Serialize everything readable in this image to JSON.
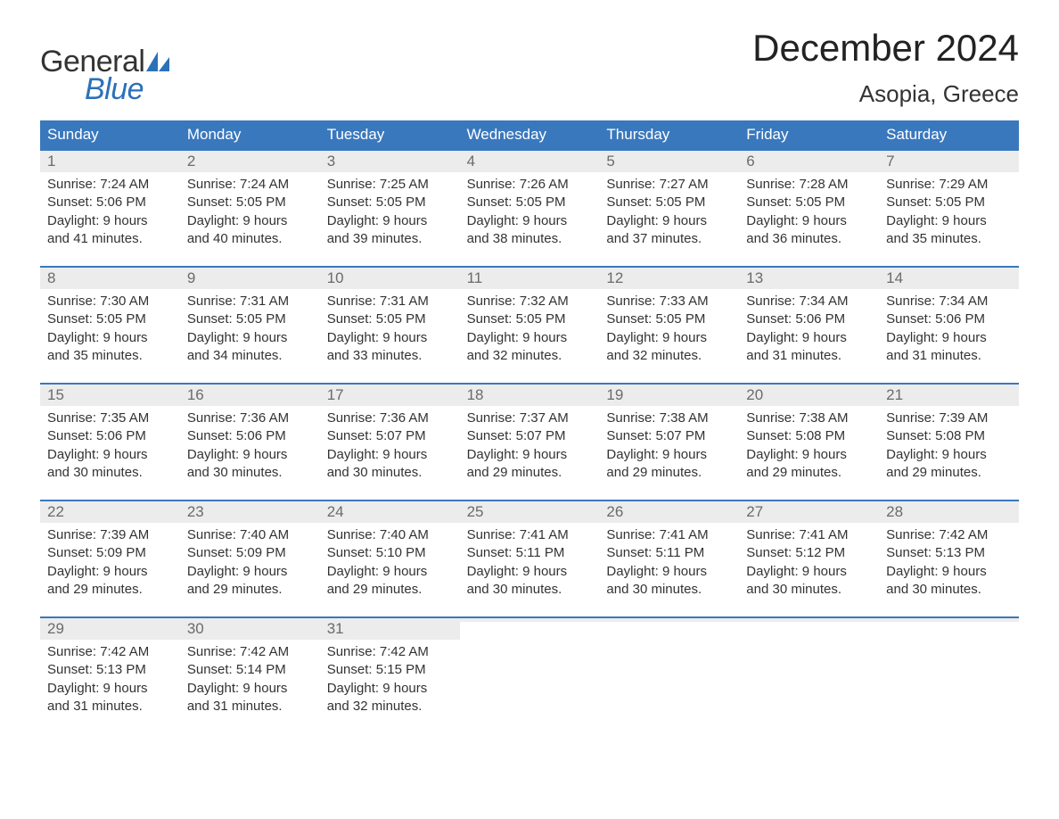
{
  "logo": {
    "text1": "General",
    "text2": "Blue",
    "sail_color": "#2b71b8",
    "text1_color": "#333333",
    "text2_color": "#2b71b8"
  },
  "title": "December 2024",
  "location": "Asopia, Greece",
  "colors": {
    "header_bg": "#3a78bd",
    "header_text": "#ffffff",
    "week_border": "#3a78bd",
    "daynum_bg": "#ececec",
    "daynum_text": "#6b6b6b",
    "body_text": "#333333",
    "page_bg": "#ffffff"
  },
  "typography": {
    "title_fontsize": 42,
    "location_fontsize": 26,
    "dayname_fontsize": 17,
    "daynum_fontsize": 17,
    "body_fontsize": 15,
    "font_family": "Arial"
  },
  "layout": {
    "columns": 7,
    "rows": 5,
    "cell_padding": 8
  },
  "daynames": [
    "Sunday",
    "Monday",
    "Tuesday",
    "Wednesday",
    "Thursday",
    "Friday",
    "Saturday"
  ],
  "weeks": [
    [
      {
        "n": "1",
        "sunrise": "Sunrise: 7:24 AM",
        "sunset": "Sunset: 5:06 PM",
        "daylight": "Daylight: 9 hours and 41 minutes."
      },
      {
        "n": "2",
        "sunrise": "Sunrise: 7:24 AM",
        "sunset": "Sunset: 5:05 PM",
        "daylight": "Daylight: 9 hours and 40 minutes."
      },
      {
        "n": "3",
        "sunrise": "Sunrise: 7:25 AM",
        "sunset": "Sunset: 5:05 PM",
        "daylight": "Daylight: 9 hours and 39 minutes."
      },
      {
        "n": "4",
        "sunrise": "Sunrise: 7:26 AM",
        "sunset": "Sunset: 5:05 PM",
        "daylight": "Daylight: 9 hours and 38 minutes."
      },
      {
        "n": "5",
        "sunrise": "Sunrise: 7:27 AM",
        "sunset": "Sunset: 5:05 PM",
        "daylight": "Daylight: 9 hours and 37 minutes."
      },
      {
        "n": "6",
        "sunrise": "Sunrise: 7:28 AM",
        "sunset": "Sunset: 5:05 PM",
        "daylight": "Daylight: 9 hours and 36 minutes."
      },
      {
        "n": "7",
        "sunrise": "Sunrise: 7:29 AM",
        "sunset": "Sunset: 5:05 PM",
        "daylight": "Daylight: 9 hours and 35 minutes."
      }
    ],
    [
      {
        "n": "8",
        "sunrise": "Sunrise: 7:30 AM",
        "sunset": "Sunset: 5:05 PM",
        "daylight": "Daylight: 9 hours and 35 minutes."
      },
      {
        "n": "9",
        "sunrise": "Sunrise: 7:31 AM",
        "sunset": "Sunset: 5:05 PM",
        "daylight": "Daylight: 9 hours and 34 minutes."
      },
      {
        "n": "10",
        "sunrise": "Sunrise: 7:31 AM",
        "sunset": "Sunset: 5:05 PM",
        "daylight": "Daylight: 9 hours and 33 minutes."
      },
      {
        "n": "11",
        "sunrise": "Sunrise: 7:32 AM",
        "sunset": "Sunset: 5:05 PM",
        "daylight": "Daylight: 9 hours and 32 minutes."
      },
      {
        "n": "12",
        "sunrise": "Sunrise: 7:33 AM",
        "sunset": "Sunset: 5:05 PM",
        "daylight": "Daylight: 9 hours and 32 minutes."
      },
      {
        "n": "13",
        "sunrise": "Sunrise: 7:34 AM",
        "sunset": "Sunset: 5:06 PM",
        "daylight": "Daylight: 9 hours and 31 minutes."
      },
      {
        "n": "14",
        "sunrise": "Sunrise: 7:34 AM",
        "sunset": "Sunset: 5:06 PM",
        "daylight": "Daylight: 9 hours and 31 minutes."
      }
    ],
    [
      {
        "n": "15",
        "sunrise": "Sunrise: 7:35 AM",
        "sunset": "Sunset: 5:06 PM",
        "daylight": "Daylight: 9 hours and 30 minutes."
      },
      {
        "n": "16",
        "sunrise": "Sunrise: 7:36 AM",
        "sunset": "Sunset: 5:06 PM",
        "daylight": "Daylight: 9 hours and 30 minutes."
      },
      {
        "n": "17",
        "sunrise": "Sunrise: 7:36 AM",
        "sunset": "Sunset: 5:07 PM",
        "daylight": "Daylight: 9 hours and 30 minutes."
      },
      {
        "n": "18",
        "sunrise": "Sunrise: 7:37 AM",
        "sunset": "Sunset: 5:07 PM",
        "daylight": "Daylight: 9 hours and 29 minutes."
      },
      {
        "n": "19",
        "sunrise": "Sunrise: 7:38 AM",
        "sunset": "Sunset: 5:07 PM",
        "daylight": "Daylight: 9 hours and 29 minutes."
      },
      {
        "n": "20",
        "sunrise": "Sunrise: 7:38 AM",
        "sunset": "Sunset: 5:08 PM",
        "daylight": "Daylight: 9 hours and 29 minutes."
      },
      {
        "n": "21",
        "sunrise": "Sunrise: 7:39 AM",
        "sunset": "Sunset: 5:08 PM",
        "daylight": "Daylight: 9 hours and 29 minutes."
      }
    ],
    [
      {
        "n": "22",
        "sunrise": "Sunrise: 7:39 AM",
        "sunset": "Sunset: 5:09 PM",
        "daylight": "Daylight: 9 hours and 29 minutes."
      },
      {
        "n": "23",
        "sunrise": "Sunrise: 7:40 AM",
        "sunset": "Sunset: 5:09 PM",
        "daylight": "Daylight: 9 hours and 29 minutes."
      },
      {
        "n": "24",
        "sunrise": "Sunrise: 7:40 AM",
        "sunset": "Sunset: 5:10 PM",
        "daylight": "Daylight: 9 hours and 29 minutes."
      },
      {
        "n": "25",
        "sunrise": "Sunrise: 7:41 AM",
        "sunset": "Sunset: 5:11 PM",
        "daylight": "Daylight: 9 hours and 30 minutes."
      },
      {
        "n": "26",
        "sunrise": "Sunrise: 7:41 AM",
        "sunset": "Sunset: 5:11 PM",
        "daylight": "Daylight: 9 hours and 30 minutes."
      },
      {
        "n": "27",
        "sunrise": "Sunrise: 7:41 AM",
        "sunset": "Sunset: 5:12 PM",
        "daylight": "Daylight: 9 hours and 30 minutes."
      },
      {
        "n": "28",
        "sunrise": "Sunrise: 7:42 AM",
        "sunset": "Sunset: 5:13 PM",
        "daylight": "Daylight: 9 hours and 30 minutes."
      }
    ],
    [
      {
        "n": "29",
        "sunrise": "Sunrise: 7:42 AM",
        "sunset": "Sunset: 5:13 PM",
        "daylight": "Daylight: 9 hours and 31 minutes."
      },
      {
        "n": "30",
        "sunrise": "Sunrise: 7:42 AM",
        "sunset": "Sunset: 5:14 PM",
        "daylight": "Daylight: 9 hours and 31 minutes."
      },
      {
        "n": "31",
        "sunrise": "Sunrise: 7:42 AM",
        "sunset": "Sunset: 5:15 PM",
        "daylight": "Daylight: 9 hours and 32 minutes."
      },
      null,
      null,
      null,
      null
    ]
  ]
}
